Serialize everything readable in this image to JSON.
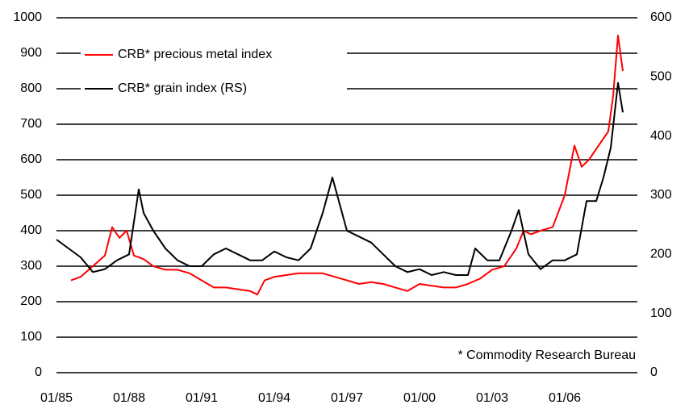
{
  "chart_data": {
    "type": "line",
    "annotations": [
      "* Commodity Research Bureau"
    ],
    "xlim": [
      1985,
      2009
    ],
    "xticks": [
      {
        "value": 1985,
        "label": "01/85"
      },
      {
        "value": 1988,
        "label": "01/88"
      },
      {
        "value": 1991,
        "label": "01/91"
      },
      {
        "value": 1994,
        "label": "01/94"
      },
      {
        "value": 1997,
        "label": "01/97"
      },
      {
        "value": 2000,
        "label": "01/00"
      },
      {
        "value": 2003,
        "label": "01/03"
      },
      {
        "value": 2006,
        "label": "01/06"
      }
    ],
    "ylim": [
      0,
      1000
    ],
    "yticks": [
      0,
      100,
      200,
      300,
      400,
      500,
      600,
      700,
      800,
      900,
      1000
    ],
    "y2lim": [
      0,
      600
    ],
    "y2ticks": [
      0,
      100,
      200,
      300,
      400,
      500,
      600
    ],
    "grid": true,
    "legend": "upper left",
    "series": [
      {
        "name": "CRB* precious metal index",
        "color": "#ff0000",
        "x": [
          1985.6,
          1986.0,
          1986.5,
          1987.0,
          1987.3,
          1987.6,
          1987.9,
          1988.2,
          1988.6,
          1989.0,
          1989.5,
          1990.0,
          1990.5,
          1991.0,
          1991.5,
          1992.0,
          1992.5,
          1993.0,
          1993.3,
          1993.6,
          1994.0,
          1994.5,
          1995.0,
          1995.5,
          1996.0,
          1996.5,
          1997.0,
          1997.5,
          1998.0,
          1998.5,
          1999.0,
          1999.5,
          2000.0,
          2000.5,
          2001.0,
          2001.5,
          2002.0,
          2002.5,
          2003.0,
          2003.5,
          2004.0,
          2004.3,
          2004.6,
          2005.0,
          2005.5,
          2006.0,
          2006.4,
          2006.7,
          2007.0,
          2007.5,
          2007.8,
          2008.0,
          2008.2,
          2008.4
        ],
        "values": [
          260,
          270,
          300,
          330,
          410,
          380,
          400,
          330,
          320,
          300,
          290,
          290,
          280,
          260,
          240,
          240,
          235,
          230,
          220,
          260,
          270,
          275,
          280,
          280,
          280,
          270,
          260,
          250,
          255,
          250,
          240,
          230,
          250,
          245,
          240,
          240,
          250,
          265,
          290,
          300,
          350,
          400,
          390,
          400,
          410,
          500,
          640,
          580,
          600,
          650,
          680,
          780,
          950,
          850
        ]
      },
      {
        "name": "CRB* grain index (RS)",
        "color": "#000000",
        "axis": "y2",
        "x": [
          1985.0,
          1985.5,
          1986.0,
          1986.5,
          1987.0,
          1987.5,
          1988.0,
          1988.4,
          1988.6,
          1989.0,
          1989.5,
          1990.0,
          1990.5,
          1991.0,
          1991.5,
          1992.0,
          1992.5,
          1993.0,
          1993.5,
          1994.0,
          1994.5,
          1995.0,
          1995.5,
          1996.0,
          1996.4,
          1996.8,
          1997.0,
          1997.5,
          1998.0,
          1998.5,
          1999.0,
          1999.5,
          2000.0,
          2000.5,
          2001.0,
          2001.5,
          2002.0,
          2002.3,
          2002.8,
          2003.3,
          2003.8,
          2004.1,
          2004.5,
          2005.0,
          2005.5,
          2006.0,
          2006.5,
          2006.9,
          2007.3,
          2007.6,
          2007.9,
          2008.2,
          2008.4
        ],
        "values": [
          225,
          210,
          195,
          170,
          175,
          190,
          200,
          310,
          270,
          240,
          210,
          190,
          180,
          180,
          200,
          210,
          200,
          190,
          190,
          205,
          195,
          190,
          210,
          270,
          330,
          270,
          240,
          230,
          220,
          200,
          180,
          170,
          175,
          165,
          170,
          165,
          165,
          210,
          190,
          190,
          240,
          275,
          200,
          175,
          190,
          190,
          200,
          290,
          290,
          330,
          380,
          490,
          440
        ]
      }
    ]
  }
}
